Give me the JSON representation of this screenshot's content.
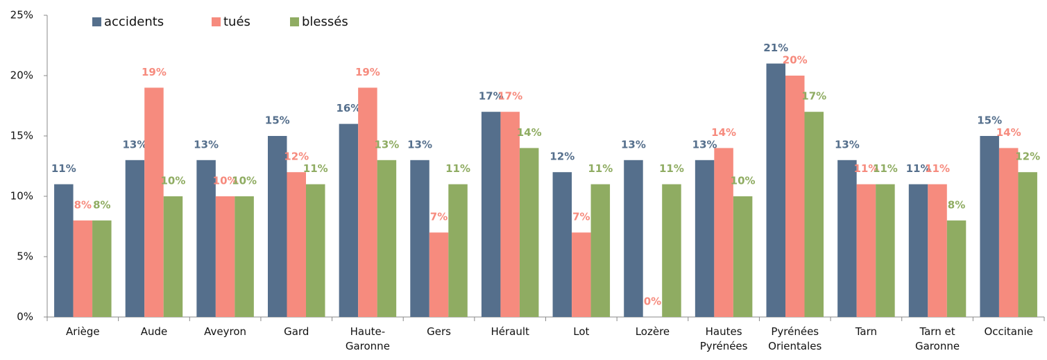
{
  "chart_data": {
    "type": "bar",
    "categories": [
      "Ariège",
      "Aude",
      "Aveyron",
      "Gard",
      "Haute-Garonne",
      "Gers",
      "Hérault",
      "Lot",
      "Lozère",
      "Hautes Pyrénées",
      "Pyrénées Orientales",
      "Tarn",
      "Tarn et Garonne",
      "Occitanie"
    ],
    "series": [
      {
        "name": "accidents",
        "color": "#556f8c",
        "values": [
          11,
          13,
          13,
          15,
          16,
          13,
          17,
          12,
          13,
          13,
          21,
          13,
          11,
          15
        ],
        "value_labels": [
          "11%",
          "13%",
          "13%",
          "15%",
          "16%",
          "13%",
          "17%",
          "12%",
          "13%",
          "13%",
          "21%",
          "13%",
          "11%",
          "15%"
        ]
      },
      {
        "name": "tués",
        "color": "#f68b7e",
        "values": [
          8,
          19,
          10,
          12,
          19,
          7,
          17,
          7,
          0,
          14,
          20,
          11,
          11,
          14
        ],
        "value_labels": [
          "8%",
          "19%",
          "10%",
          "12%",
          "19%",
          "7%",
          "17%",
          "7%",
          "0%",
          "14%",
          "20%",
          "11%",
          "11%",
          "14%"
        ]
      },
      {
        "name": "blessés",
        "color": "#8fac62",
        "values": [
          8,
          10,
          10,
          11,
          13,
          11,
          14,
          11,
          11,
          10,
          17,
          11,
          8,
          12
        ],
        "value_labels": [
          "8%",
          "10%",
          "10%",
          "11%",
          "13%",
          "11%",
          "14%",
          "11%",
          "11%",
          "10%",
          "17%",
          "11%",
          "8%",
          "12%"
        ]
      }
    ],
    "ylim": [
      0,
      25
    ],
    "yticks": [
      {
        "value": 0,
        "label": "0%"
      },
      {
        "value": 5,
        "label": "5%"
      },
      {
        "value": 10,
        "label": "10%"
      },
      {
        "value": 15,
        "label": "15%"
      },
      {
        "value": 20,
        "label": "20%"
      },
      {
        "value": 25,
        "label": "25%"
      }
    ],
    "grid": false,
    "legend": "top-left"
  }
}
